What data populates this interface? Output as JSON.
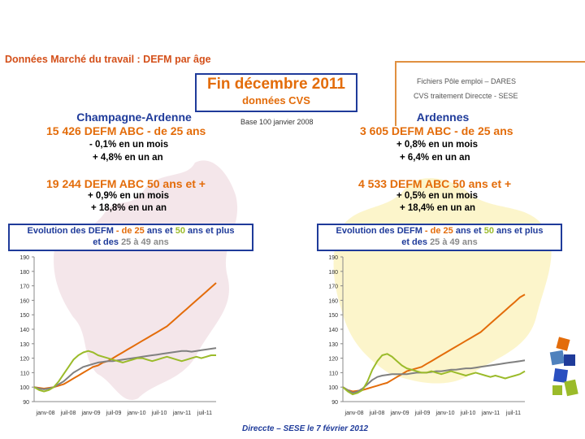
{
  "title": "Données Marché du travail : DEFM par âge",
  "source_line1": "Fichiers Pôle emploi – DARES",
  "source_line2": "CVS traitement Direccte - SESE",
  "heading_line1": "Fin décembre 2011",
  "heading_line2": "données CVS",
  "base_note": "Base 100 janvier 2008",
  "footer": "Direccte – SESE le 7 février 2012",
  "left": {
    "region": "Champagne-Ardenne",
    "young_count": "15 426 DEFM ABC - de 25 ans",
    "young_month": "- 0,1% en un mois",
    "young_year": "+ 4,8% en un an",
    "senior_count": "19 244 DEFM ABC 50 ans et +",
    "senior_month": "+ 0,9% en un mois",
    "senior_year": "+ 18,8% en un an",
    "evo_line1_a": "Evolution des",
    "evo_line1_b": "DEFM",
    "evo_line1_c": "- de 25",
    "evo_line1_d": "ans et",
    "evo_line1_e": "50",
    "evo_line1_f": "ans et plus",
    "evo_line2_a": "et des",
    "evo_line2_b": "25 à 49",
    "evo_line2_c": "ans"
  },
  "right": {
    "region": "Ardennes",
    "young_count": "3 605 DEFM ABC - de 25 ans",
    "young_month": "+ 0,8% en un mois",
    "young_year": "+ 6,4% en un an",
    "senior_count": "4 533 DEFM ABC 50 ans et +",
    "senior_month": "+ 0,5% en un mois",
    "senior_year": "+ 18,4% en un an",
    "evo_line1_a": "Evolution des",
    "evo_line1_b": "DEFM",
    "evo_line1_c": "- de 25",
    "evo_line1_d": "ans et",
    "evo_line1_e": "50",
    "evo_line1_f": "ans et plus",
    "evo_line2_a": "et des",
    "evo_line2_b": "25 à 49",
    "evo_line2_c": "ans"
  },
  "colors": {
    "orange": "#e36c0a",
    "green": "#9bbb2a",
    "grey": "#808080",
    "blue": "#1f3b9a"
  },
  "chart_data": [
    {
      "type": "line",
      "title": "Champagne-Ardenne",
      "xlabel": "",
      "ylabel": "",
      "ylim": [
        90,
        190
      ],
      "yticks": [
        "90",
        "100",
        "110",
        "120",
        "130",
        "140",
        "150",
        "160",
        "170",
        "180",
        "190"
      ],
      "xticks": [
        "janv-08",
        "juil-08",
        "janv-09",
        "juil-09",
        "janv-10",
        "juil-10",
        "janv-11",
        "juil-11"
      ],
      "series": [
        {
          "name": "50 ans et plus",
          "color": "#e36c0a",
          "values": [
            100,
            99.5,
            99,
            99.5,
            100,
            101,
            102,
            104,
            106,
            108,
            110,
            112,
            114,
            115,
            117,
            118,
            120,
            122,
            124,
            126,
            128,
            130,
            132,
            134,
            136,
            138,
            140,
            142,
            145,
            148,
            151,
            154,
            157,
            160,
            163,
            166,
            169,
            172
          ]
        },
        {
          "name": "25 à 49 ans",
          "color": "#808080",
          "values": [
            100,
            99,
            98.5,
            99,
            100,
            102,
            104,
            107,
            110,
            112,
            114,
            115,
            116,
            117,
            117.5,
            118,
            118,
            118.5,
            119,
            119.5,
            120,
            120.5,
            121,
            121.5,
            122,
            122.5,
            123,
            123.5,
            124,
            124.5,
            125,
            125,
            124.5,
            125,
            125.5,
            126,
            126.5,
            127
          ]
        },
        {
          "name": "- de 25 ans",
          "color": "#9bbb2a",
          "values": [
            100,
            98,
            97,
            98,
            100,
            104,
            109,
            114,
            119,
            122,
            124,
            125,
            124,
            122,
            121,
            120,
            119,
            118,
            117,
            118,
            119,
            120,
            120,
            119,
            118,
            119,
            120,
            121,
            120,
            119,
            118,
            119,
            120,
            121,
            120,
            121,
            122,
            122
          ]
        }
      ]
    },
    {
      "type": "line",
      "title": "Ardennes",
      "xlabel": "",
      "ylabel": "",
      "ylim": [
        90,
        190
      ],
      "yticks": [
        "90",
        "100",
        "110",
        "120",
        "130",
        "140",
        "150",
        "160",
        "170",
        "180",
        "190"
      ],
      "xticks": [
        "janv-08",
        "juil-08",
        "janv-09",
        "juil-09",
        "janv-10",
        "juil-10",
        "janv-11",
        "juil-11"
      ],
      "series": [
        {
          "name": "50 ans et plus",
          "color": "#e36c0a",
          "values": [
            100,
            98,
            97,
            97.5,
            98,
            99,
            100,
            101,
            102,
            103,
            105,
            107,
            109,
            111,
            112,
            113,
            114,
            116,
            118,
            120,
            122,
            124,
            126,
            128,
            130,
            132,
            134,
            136,
            138,
            141,
            144,
            147,
            150,
            153,
            156,
            159,
            162,
            164
          ]
        },
        {
          "name": "25 à 49 ans",
          "color": "#808080",
          "values": [
            100,
            98,
            96,
            97,
            99,
            102,
            105,
            107,
            108,
            108.5,
            109,
            109,
            109,
            109,
            109.5,
            110,
            110,
            110,
            110.5,
            111,
            111,
            111.5,
            112,
            112,
            112.5,
            113,
            113,
            113.5,
            114,
            114.5,
            115,
            115.5,
            116,
            116.5,
            117,
            117.5,
            118,
            118.5
          ]
        },
        {
          "name": "- de 25 ans",
          "color": "#9bbb2a",
          "values": [
            100,
            97,
            95,
            96,
            98,
            104,
            112,
            118,
            122,
            123,
            121,
            118,
            115,
            113,
            112,
            111,
            110,
            110,
            111,
            110,
            109,
            110,
            111,
            110,
            109,
            108,
            109,
            110,
            109,
            108,
            107,
            108,
            107,
            106,
            107,
            108,
            109,
            111
          ]
        }
      ]
    }
  ]
}
